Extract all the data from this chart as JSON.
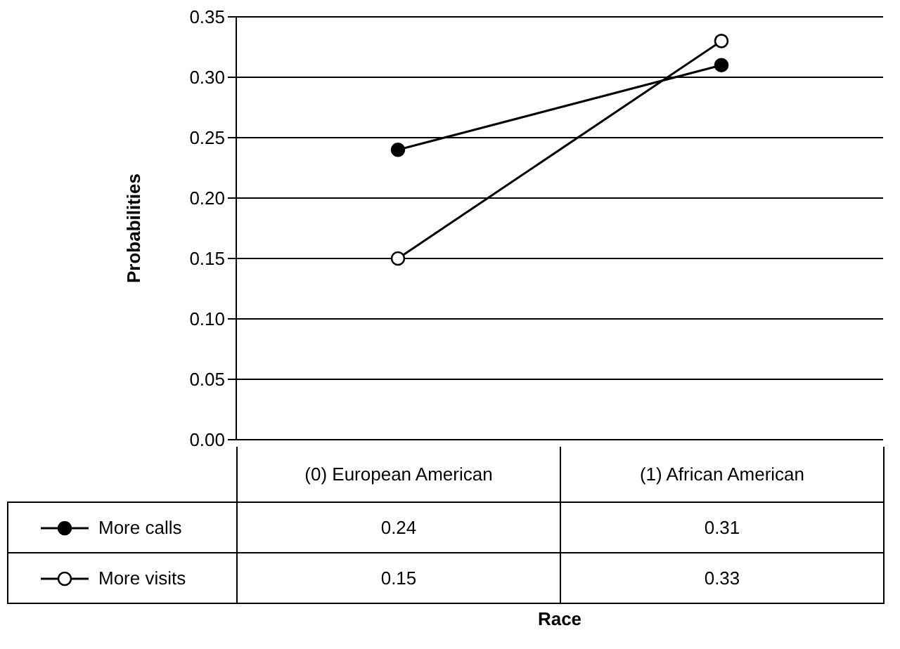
{
  "chart_data": {
    "type": "line",
    "annotations": [
      "Race"
    ],
    "ylabel": "Probabilities",
    "categories": [
      "(0) European American",
      "(1) African American"
    ],
    "series": [
      {
        "name": "More calls",
        "color": "#000000",
        "values": [
          0.24,
          0.31
        ]
      },
      {
        "name": "More visits",
        "color": "#000000",
        "values": [
          0.15,
          0.33
        ]
      }
    ],
    "ylim": [
      0,
      0.35
    ],
    "yticks": [
      {
        "value": 0,
        "label": "0.00"
      },
      {
        "value": 0.05,
        "label": "0.05"
      },
      {
        "value": 0.1,
        "label": "0.10"
      },
      {
        "value": 0.15,
        "label": "0.15"
      },
      {
        "value": 0.2,
        "label": "0.20"
      },
      {
        "value": 0.25,
        "label": "0.25"
      },
      {
        "value": 0.3,
        "label": "0.30"
      },
      {
        "value": 0.35,
        "label": "0.35"
      }
    ],
    "grid": "y",
    "legend": "bottom left",
    "marker": "circle",
    "data_labels": true
  }
}
